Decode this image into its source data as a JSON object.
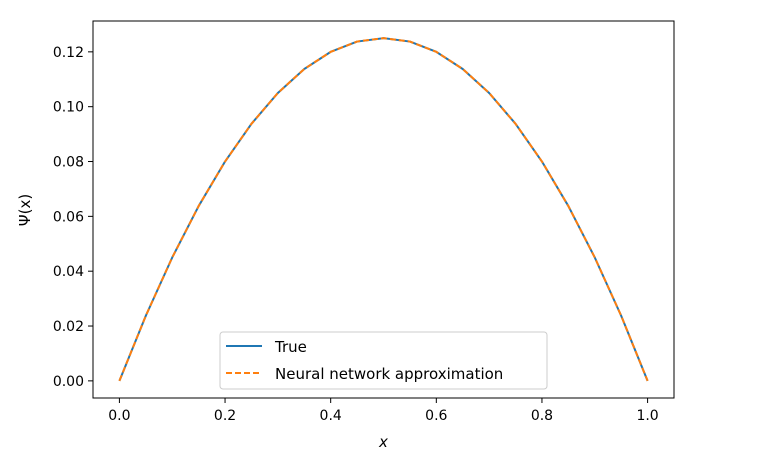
{
  "chart_data": {
    "type": "line",
    "title": "",
    "xlabel": "x",
    "ylabel": "Ψ(x)",
    "xlim": [
      -0.05,
      1.05
    ],
    "ylim": [
      -0.00625,
      0.13125
    ],
    "x_ticks": [
      0.0,
      0.2,
      0.4,
      0.6,
      0.8,
      1.0
    ],
    "x_tick_labels": [
      "0.0",
      "0.2",
      "0.4",
      "0.6",
      "0.8",
      "1.0"
    ],
    "y_ticks": [
      0.0,
      0.02,
      0.04,
      0.06,
      0.08,
      0.1,
      0.12
    ],
    "y_tick_labels": [
      "0.00",
      "0.02",
      "0.04",
      "0.06",
      "0.08",
      "0.10",
      "0.12"
    ],
    "grid": false,
    "legend": {
      "placement": "lower-center"
    },
    "x": [
      0.0,
      0.05,
      0.1,
      0.15,
      0.2,
      0.25,
      0.3,
      0.35,
      0.4,
      0.45,
      0.5,
      0.55,
      0.6,
      0.65,
      0.7,
      0.75,
      0.8,
      0.85,
      0.9,
      0.95,
      1.0
    ],
    "series": [
      {
        "name": "True",
        "color": "#1f77b4",
        "style": "solid",
        "values": [
          0.0,
          0.02375,
          0.045,
          0.06375,
          0.08,
          0.09375,
          0.105,
          0.11375,
          0.12,
          0.12375,
          0.125,
          0.12375,
          0.12,
          0.11375,
          0.105,
          0.09375,
          0.08,
          0.06375,
          0.045,
          0.02375,
          0.0
        ]
      },
      {
        "name": "Neural network approximation",
        "color": "#ff7f0e",
        "style": "dashed",
        "values": [
          0.0,
          0.02375,
          0.045,
          0.06375,
          0.08,
          0.09375,
          0.105,
          0.11375,
          0.12,
          0.12375,
          0.125,
          0.12375,
          0.12,
          0.11375,
          0.105,
          0.09375,
          0.08,
          0.06375,
          0.045,
          0.02375,
          0.0
        ]
      }
    ]
  }
}
